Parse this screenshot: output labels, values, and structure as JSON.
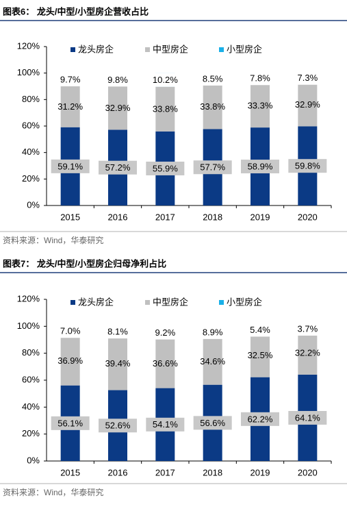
{
  "chart_data": [
    {
      "type": "bar",
      "stacked": true,
      "title": "图表6：  龙头/中型/小型房企营收占比",
      "source": "资料来源：Wind，华泰研究",
      "categories": [
        "2015",
        "2016",
        "2017",
        "2018",
        "2019",
        "2020"
      ],
      "series": [
        {
          "name": "龙头房企",
          "color": "#0b3a85",
          "values": [
            59.1,
            57.2,
            55.9,
            57.7,
            58.9,
            59.8
          ],
          "value_labels": [
            "59.1%",
            "57.2%",
            "55.9%",
            "57.7%",
            "58.9%",
            "59.8%"
          ]
        },
        {
          "name": "中型房企",
          "color": "#c0c0c0",
          "values": [
            31.2,
            32.9,
            33.8,
            33.8,
            33.3,
            32.9
          ],
          "value_labels": [
            "31.2%",
            "32.9%",
            "33.8%",
            "33.8%",
            "33.3%",
            "32.9%"
          ]
        },
        {
          "name": "小型房企",
          "color": "#1ab0e8",
          "values": [
            9.7,
            9.8,
            10.2,
            8.5,
            7.8,
            7.3
          ],
          "value_labels": [
            "9.7%",
            "9.8%",
            "10.2%",
            "8.5%",
            "7.8%",
            "7.3%"
          ]
        }
      ],
      "ylim": [
        0,
        120
      ],
      "yticks": [
        {
          "value": 0,
          "label": "0%"
        },
        {
          "value": 20,
          "label": "20%"
        },
        {
          "value": 40,
          "label": "40%"
        },
        {
          "value": 60,
          "label": "60%"
        },
        {
          "value": 80,
          "label": "80%"
        },
        {
          "value": 100,
          "label": "100%"
        },
        {
          "value": 120,
          "label": "120%"
        }
      ],
      "legend": "top"
    },
    {
      "type": "bar",
      "stacked": true,
      "title": "图表7：  龙头/中型/小型房企归母净利占比",
      "source": "资料来源：Wind，华泰研究",
      "categories": [
        "2015",
        "2016",
        "2017",
        "2018",
        "2019",
        "2020"
      ],
      "series": [
        {
          "name": "龙头房企",
          "color": "#0b3a85",
          "values": [
            56.1,
            52.6,
            54.1,
            56.6,
            62.2,
            64.1
          ],
          "value_labels": [
            "56.1%",
            "52.6%",
            "54.1%",
            "56.6%",
            "62.2%",
            "64.1%"
          ]
        },
        {
          "name": "中型房企",
          "color": "#c0c0c0",
          "values": [
            36.9,
            39.4,
            36.6,
            34.6,
            32.5,
            32.2
          ],
          "value_labels": [
            "36.9%",
            "39.4%",
            "36.6%",
            "34.6%",
            "32.5%",
            "32.2%"
          ]
        },
        {
          "name": "小型房企",
          "color": "#1ab0e8",
          "values": [
            7.0,
            8.1,
            9.2,
            8.9,
            5.4,
            3.7
          ],
          "value_labels": [
            "7.0%",
            "8.1%",
            "9.2%",
            "8.9%",
            "5.4%",
            "3.7%"
          ]
        }
      ],
      "ylim": [
        0,
        120
      ],
      "yticks": [
        {
          "value": 0,
          "label": "0%"
        },
        {
          "value": 20,
          "label": "20%"
        },
        {
          "value": 40,
          "label": "40%"
        },
        {
          "value": 60,
          "label": "60%"
        },
        {
          "value": 80,
          "label": "80%"
        },
        {
          "value": 100,
          "label": "100%"
        },
        {
          "value": 120,
          "label": "120%"
        }
      ],
      "legend": "top"
    }
  ]
}
